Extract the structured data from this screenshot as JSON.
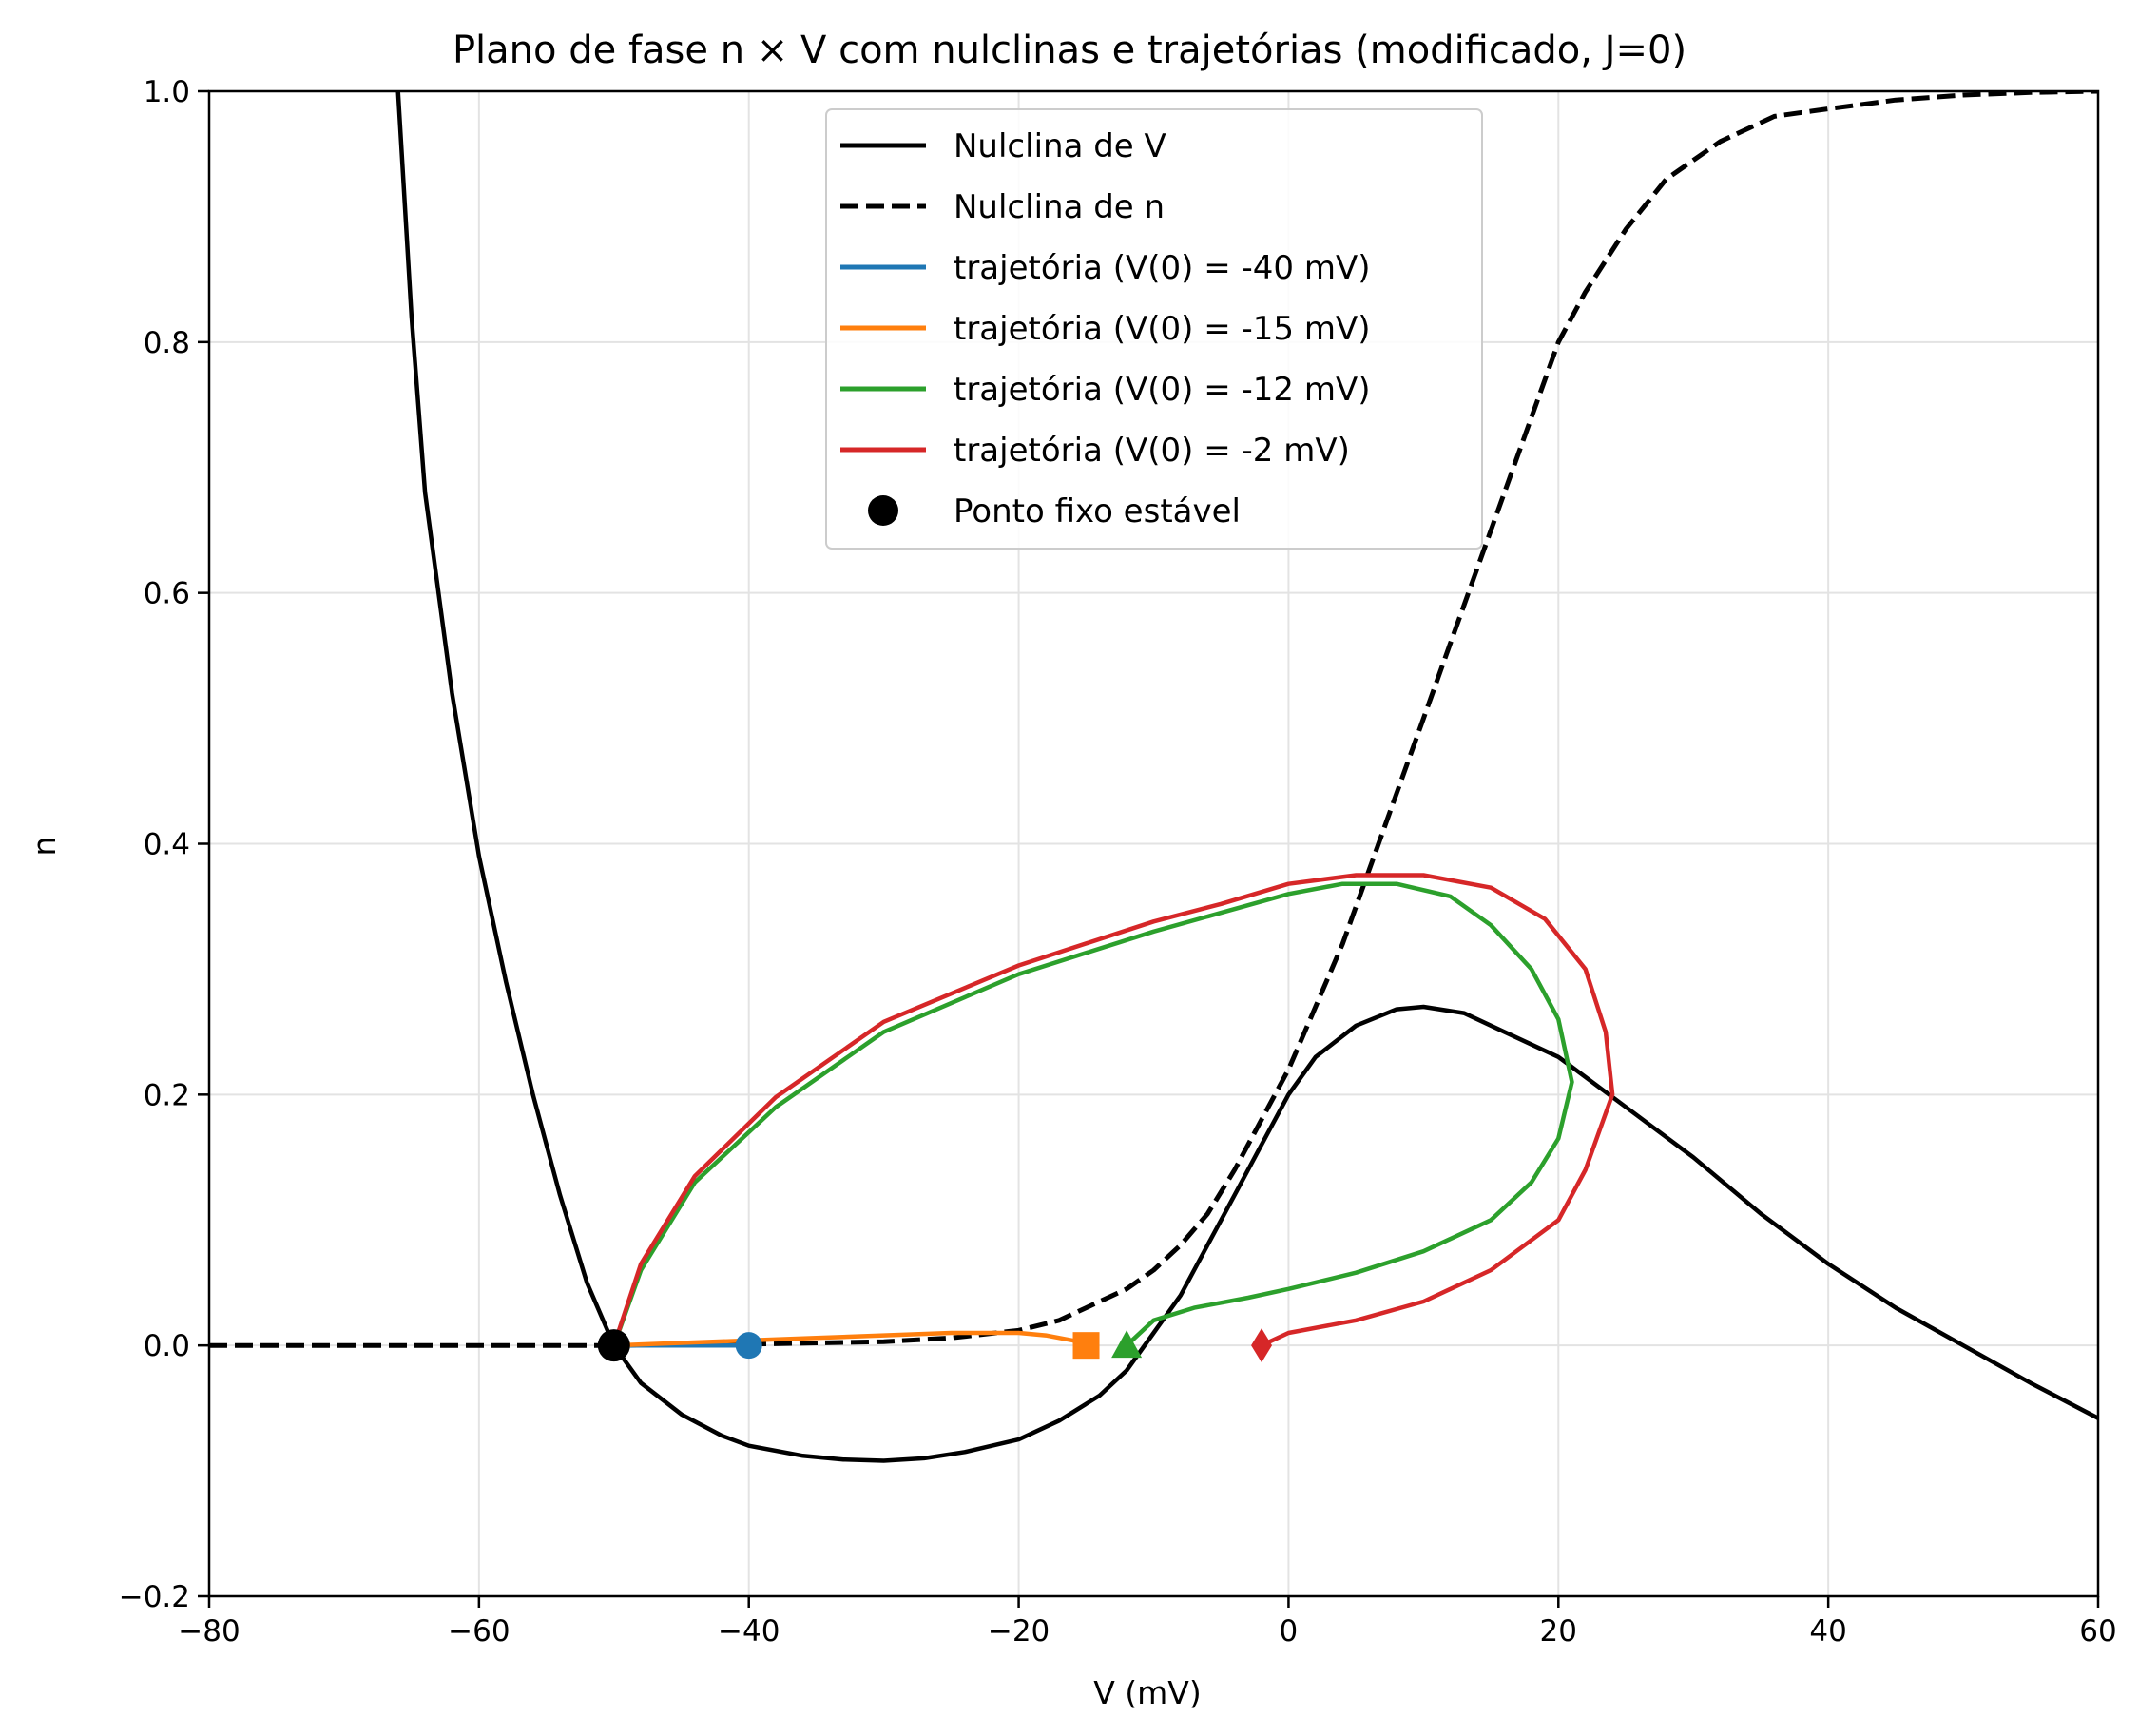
{
  "chart_data": {
    "type": "line",
    "title": "Plano de fase n × V com nulclinas e trajetórias (modificado, J=0)",
    "xlabel": "V (mV)",
    "ylabel": "n",
    "xlim": [
      -80,
      60
    ],
    "ylim": [
      -0.2,
      1.0
    ],
    "xticks": [
      -80,
      -60,
      -40,
      -20,
      0,
      20,
      40,
      60
    ],
    "xtick_labels": [
      "−80",
      "−60",
      "−40",
      "−20",
      "0",
      "20",
      "40",
      "60"
    ],
    "yticks": [
      -0.2,
      0.0,
      0.2,
      0.4,
      0.6,
      0.8,
      1.0
    ],
    "ytick_labels": [
      "−0.2",
      "0.0",
      "0.2",
      "0.4",
      "0.6",
      "0.8",
      "1.0"
    ],
    "grid": true,
    "legend_position": "upper center",
    "series": [
      {
        "name": "Nulclina de V",
        "color": "#000000",
        "style": "solid",
        "points": [
          [
            -66,
            1.0
          ],
          [
            -65,
            0.82
          ],
          [
            -64,
            0.68
          ],
          [
            -62,
            0.52
          ],
          [
            -60,
            0.39
          ],
          [
            -58,
            0.29
          ],
          [
            -56,
            0.2
          ],
          [
            -54,
            0.12
          ],
          [
            -52,
            0.05
          ],
          [
            -50,
            0.0
          ],
          [
            -48,
            -0.03
          ],
          [
            -45,
            -0.055
          ],
          [
            -42,
            -0.072
          ],
          [
            -40,
            -0.08
          ],
          [
            -36,
            -0.088
          ],
          [
            -33,
            -0.091
          ],
          [
            -30,
            -0.092
          ],
          [
            -27,
            -0.09
          ],
          [
            -24,
            -0.085
          ],
          [
            -20,
            -0.075
          ],
          [
            -17,
            -0.06
          ],
          [
            -14,
            -0.04
          ],
          [
            -12,
            -0.02
          ],
          [
            -10,
            0.01
          ],
          [
            -8,
            0.04
          ],
          [
            -6,
            0.08
          ],
          [
            -4,
            0.12
          ],
          [
            -2,
            0.16
          ],
          [
            0,
            0.2
          ],
          [
            2,
            0.23
          ],
          [
            5,
            0.255
          ],
          [
            8,
            0.268
          ],
          [
            10,
            0.27
          ],
          [
            13,
            0.265
          ],
          [
            16,
            0.25
          ],
          [
            20,
            0.23
          ],
          [
            25,
            0.19
          ],
          [
            30,
            0.15
          ],
          [
            35,
            0.105
          ],
          [
            40,
            0.065
          ],
          [
            45,
            0.03
          ],
          [
            50,
            0.0
          ],
          [
            55,
            -0.03
          ],
          [
            60,
            -0.058
          ]
        ]
      },
      {
        "name": "Nulclina de n",
        "color": "#000000",
        "style": "dashed",
        "points": [
          [
            -80,
            0.0
          ],
          [
            -50,
            0.0
          ],
          [
            -40,
            0.001
          ],
          [
            -30,
            0.003
          ],
          [
            -25,
            0.006
          ],
          [
            -20,
            0.012
          ],
          [
            -17,
            0.02
          ],
          [
            -15,
            0.03
          ],
          [
            -12,
            0.045
          ],
          [
            -10,
            0.06
          ],
          [
            -8,
            0.08
          ],
          [
            -6,
            0.105
          ],
          [
            -4,
            0.14
          ],
          [
            -2,
            0.18
          ],
          [
            0,
            0.22
          ],
          [
            2,
            0.27
          ],
          [
            4,
            0.32
          ],
          [
            6,
            0.38
          ],
          [
            8,
            0.44
          ],
          [
            10,
            0.5
          ],
          [
            12,
            0.56
          ],
          [
            14,
            0.62
          ],
          [
            16,
            0.68
          ],
          [
            18,
            0.74
          ],
          [
            20,
            0.8
          ],
          [
            22,
            0.84
          ],
          [
            25,
            0.89
          ],
          [
            28,
            0.93
          ],
          [
            32,
            0.96
          ],
          [
            36,
            0.98
          ],
          [
            40,
            0.986
          ],
          [
            45,
            0.993
          ],
          [
            50,
            0.997
          ],
          [
            55,
            0.999
          ],
          [
            60,
            1.0
          ]
        ]
      },
      {
        "name": "trajetória (V(0) = -40 mV)",
        "color": "#1f77b4",
        "style": "solid",
        "marker": "circle",
        "points": [
          [
            -40,
            0.0
          ],
          [
            -42,
            0.0
          ],
          [
            -45,
            0.0
          ],
          [
            -48,
            0.0
          ],
          [
            -50,
            0.0
          ]
        ]
      },
      {
        "name": "trajetória (V(0) = -15 mV)",
        "color": "#ff7f0e",
        "style": "solid",
        "marker": "square",
        "points": [
          [
            -15,
            0.0
          ],
          [
            -16,
            0.004
          ],
          [
            -18,
            0.008
          ],
          [
            -20,
            0.01
          ],
          [
            -25,
            0.01
          ],
          [
            -30,
            0.008
          ],
          [
            -35,
            0.006
          ],
          [
            -40,
            0.004
          ],
          [
            -45,
            0.002
          ],
          [
            -50,
            0.0
          ]
        ]
      },
      {
        "name": "trajetória (V(0) = -12 mV)",
        "color": "#2ca02c",
        "style": "solid",
        "marker": "triangle",
        "points": [
          [
            -12,
            0.0
          ],
          [
            -10,
            0.02
          ],
          [
            -7,
            0.03
          ],
          [
            -3,
            0.038
          ],
          [
            0,
            0.045
          ],
          [
            5,
            0.058
          ],
          [
            10,
            0.075
          ],
          [
            15,
            0.1
          ],
          [
            18,
            0.13
          ],
          [
            20,
            0.165
          ],
          [
            21,
            0.21
          ],
          [
            20,
            0.26
          ],
          [
            18,
            0.3
          ],
          [
            15,
            0.335
          ],
          [
            12,
            0.358
          ],
          [
            8,
            0.368
          ],
          [
            4,
            0.368
          ],
          [
            0,
            0.36
          ],
          [
            -5,
            0.345
          ],
          [
            -10,
            0.33
          ],
          [
            -20,
            0.296
          ],
          [
            -30,
            0.25
          ],
          [
            -38,
            0.19
          ],
          [
            -44,
            0.13
          ],
          [
            -48,
            0.06
          ],
          [
            -50,
            0.0
          ]
        ]
      },
      {
        "name": "trajetória (V(0) = -2 mV)",
        "color": "#d62728",
        "style": "solid",
        "marker": "diamond",
        "points": [
          [
            -2,
            0.0
          ],
          [
            0,
            0.01
          ],
          [
            5,
            0.02
          ],
          [
            10,
            0.035
          ],
          [
            15,
            0.06
          ],
          [
            20,
            0.1
          ],
          [
            22,
            0.14
          ],
          [
            24,
            0.2
          ],
          [
            23.5,
            0.25
          ],
          [
            22,
            0.3
          ],
          [
            19,
            0.34
          ],
          [
            15,
            0.365
          ],
          [
            10,
            0.375
          ],
          [
            5,
            0.375
          ],
          [
            0,
            0.368
          ],
          [
            -5,
            0.352
          ],
          [
            -10,
            0.338
          ],
          [
            -20,
            0.303
          ],
          [
            -30,
            0.258
          ],
          [
            -38,
            0.198
          ],
          [
            -44,
            0.135
          ],
          [
            -48,
            0.065
          ],
          [
            -50,
            0.0
          ]
        ]
      }
    ],
    "fixed_point": {
      "name": "Ponto fixo estável",
      "color": "#000000",
      "x": -50,
      "y": 0.0
    }
  }
}
